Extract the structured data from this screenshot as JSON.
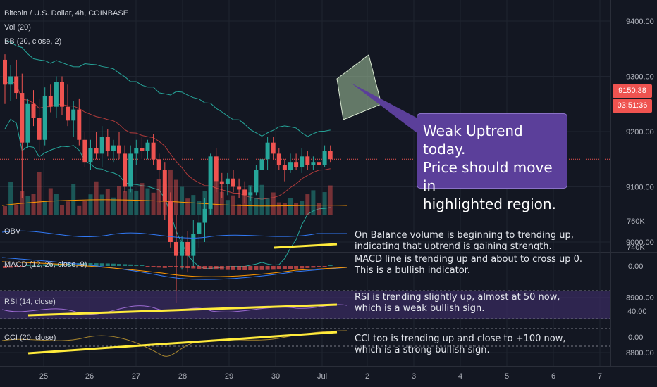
{
  "colors": {
    "bg": "#131722",
    "grid": "#1f2430",
    "up": "#26a69a",
    "down": "#ef5350",
    "bb": "#26a69a",
    "bbBasis": "#b03a3a",
    "vol_ma": "#ff9800",
    "obv": "#3179f5",
    "highlight": "#ffeb3b",
    "rsi_band": "#3b2c63",
    "price_tag": "#ef5350"
  },
  "header": {
    "symbol": "Bitcoin / U.S. Dollar, 4h, COINBASE",
    "vol": "Vol (20)",
    "bb": "BB (20, close, 2)"
  },
  "price_tags": {
    "last": "9150.38",
    "countdown": "03:51:36"
  },
  "callout": {
    "line1": "Weak Uptrend today.",
    "line2": "Price should move in",
    "line3": "highlighted region."
  },
  "panes": {
    "obv": {
      "label": "OBV",
      "note1": "On Balance volume is beginning to trending up,",
      "note2": "indicating that uptrend is gaining strength."
    },
    "macd": {
      "label": "MACD (12, 26, close, 9)",
      "note1": "MACD line is trending up and about to cross up 0.",
      "note2": "This is a bullish indicator."
    },
    "rsi": {
      "label": "RSI (14, close)",
      "note1": "RSI is trending slightly up, almost at 50 now,",
      "note2": "which is a weak bullish sign."
    },
    "cci": {
      "label": "CCI (20, close)",
      "note1": "CCI too is trending up and close to +100 now,",
      "note2": "which is a strong bullish sign."
    }
  },
  "chart_data": {
    "type": "candlestick",
    "title": "Bitcoin / U.S. Dollar, 4h, COINBASE",
    "price_axis": {
      "ticks": [
        "9400.00",
        "9300.00",
        "9200.00",
        "9100.00",
        "9000.00",
        "8900.00",
        "8800.00"
      ],
      "range": [
        8740,
        9460
      ]
    },
    "x_axis": {
      "ticks": [
        "25",
        "26",
        "27",
        "28",
        "29",
        "30",
        "Jul",
        "2",
        "3",
        "4",
        "5",
        "6",
        "7"
      ]
    },
    "candles": [
      {
        "o": 9330,
        "h": 9340,
        "l": 9250,
        "c": 9285
      },
      {
        "o": 9285,
        "h": 9320,
        "l": 9255,
        "c": 9300
      },
      {
        "o": 9300,
        "h": 9330,
        "l": 9260,
        "c": 9270
      },
      {
        "o": 9270,
        "h": 9305,
        "l": 9080,
        "c": 9180
      },
      {
        "o": 9180,
        "h": 9260,
        "l": 9170,
        "c": 9250
      },
      {
        "o": 9250,
        "h": 9275,
        "l": 9210,
        "c": 9225
      },
      {
        "o": 9225,
        "h": 9260,
        "l": 9165,
        "c": 9185
      },
      {
        "o": 9185,
        "h": 9280,
        "l": 9175,
        "c": 9265
      },
      {
        "o": 9265,
        "h": 9285,
        "l": 9235,
        "c": 9245
      },
      {
        "o": 9245,
        "h": 9300,
        "l": 9225,
        "c": 9290
      },
      {
        "o": 9290,
        "h": 9300,
        "l": 9230,
        "c": 9245
      },
      {
        "o": 9245,
        "h": 9285,
        "l": 9210,
        "c": 9220
      },
      {
        "o": 9220,
        "h": 9255,
        "l": 9190,
        "c": 9240
      },
      {
        "o": 9240,
        "h": 9260,
        "l": 9175,
        "c": 9185
      },
      {
        "o": 9185,
        "h": 9200,
        "l": 9135,
        "c": 9145
      },
      {
        "o": 9145,
        "h": 9185,
        "l": 9130,
        "c": 9170
      },
      {
        "o": 9170,
        "h": 9200,
        "l": 9150,
        "c": 9160
      },
      {
        "o": 9160,
        "h": 9210,
        "l": 9135,
        "c": 9190
      },
      {
        "o": 9190,
        "h": 9205,
        "l": 9155,
        "c": 9165
      },
      {
        "o": 9165,
        "h": 9185,
        "l": 9145,
        "c": 9175
      },
      {
        "o": 9175,
        "h": 9200,
        "l": 9150,
        "c": 9160
      },
      {
        "o": 9160,
        "h": 9175,
        "l": 9090,
        "c": 9100
      },
      {
        "o": 9100,
        "h": 9175,
        "l": 9090,
        "c": 9160
      },
      {
        "o": 9160,
        "h": 9185,
        "l": 9140,
        "c": 9170
      },
      {
        "o": 9170,
        "h": 9190,
        "l": 9150,
        "c": 9165
      },
      {
        "o": 9165,
        "h": 9185,
        "l": 9150,
        "c": 9180
      },
      {
        "o": 9180,
        "h": 9195,
        "l": 9140,
        "c": 9150
      },
      {
        "o": 9150,
        "h": 9160,
        "l": 9070,
        "c": 9130
      },
      {
        "o": 9130,
        "h": 9145,
        "l": 9040,
        "c": 9075
      },
      {
        "o": 9075,
        "h": 9090,
        "l": 8990,
        "c": 9000
      },
      {
        "o": 9000,
        "h": 9050,
        "l": 8890,
        "c": 8975
      },
      {
        "o": 8975,
        "h": 9010,
        "l": 8950,
        "c": 9000
      },
      {
        "o": 9000,
        "h": 9020,
        "l": 8945,
        "c": 8975
      },
      {
        "o": 8975,
        "h": 9040,
        "l": 8955,
        "c": 9015
      },
      {
        "o": 9015,
        "h": 9050,
        "l": 8990,
        "c": 9035
      },
      {
        "o": 9035,
        "h": 9080,
        "l": 9000,
        "c": 9060
      },
      {
        "o": 9060,
        "h": 9160,
        "l": 9050,
        "c": 9155
      },
      {
        "o": 9155,
        "h": 9170,
        "l": 9090,
        "c": 9110
      },
      {
        "o": 9110,
        "h": 9125,
        "l": 9080,
        "c": 9105
      },
      {
        "o": 9105,
        "h": 9125,
        "l": 9085,
        "c": 9115
      },
      {
        "o": 9115,
        "h": 9130,
        "l": 9090,
        "c": 9100
      },
      {
        "o": 9100,
        "h": 9115,
        "l": 9080,
        "c": 9095
      },
      {
        "o": 9095,
        "h": 9110,
        "l": 9070,
        "c": 9085
      },
      {
        "o": 9085,
        "h": 9100,
        "l": 9075,
        "c": 9090
      },
      {
        "o": 9090,
        "h": 9140,
        "l": 9085,
        "c": 9130
      },
      {
        "o": 9130,
        "h": 9160,
        "l": 9115,
        "c": 9150
      },
      {
        "o": 9150,
        "h": 9190,
        "l": 9130,
        "c": 9180
      },
      {
        "o": 9180,
        "h": 9190,
        "l": 9150,
        "c": 9160
      },
      {
        "o": 9160,
        "h": 9170,
        "l": 9130,
        "c": 9140
      },
      {
        "o": 9140,
        "h": 9150,
        "l": 9110,
        "c": 9130
      },
      {
        "o": 9130,
        "h": 9160,
        "l": 9125,
        "c": 9145
      },
      {
        "o": 9145,
        "h": 9160,
        "l": 9130,
        "c": 9135
      },
      {
        "o": 9135,
        "h": 9170,
        "l": 9125,
        "c": 9155
      },
      {
        "o": 9155,
        "h": 9165,
        "l": 9130,
        "c": 9140
      },
      {
        "o": 9140,
        "h": 9155,
        "l": 9130,
        "c": 9145
      },
      {
        "o": 9145,
        "h": 9160,
        "l": 9135,
        "c": 9140
      },
      {
        "o": 9140,
        "h": 9175,
        "l": 9135,
        "c": 9165
      },
      {
        "o": 9165,
        "h": 9175,
        "l": 9145,
        "c": 9150
      }
    ],
    "obv_axis": [
      "760K",
      "740K"
    ],
    "macd_axis": [
      "0.00"
    ],
    "rsi_axis": [
      "40.00"
    ],
    "cci_axis": [
      "0.00"
    ]
  }
}
